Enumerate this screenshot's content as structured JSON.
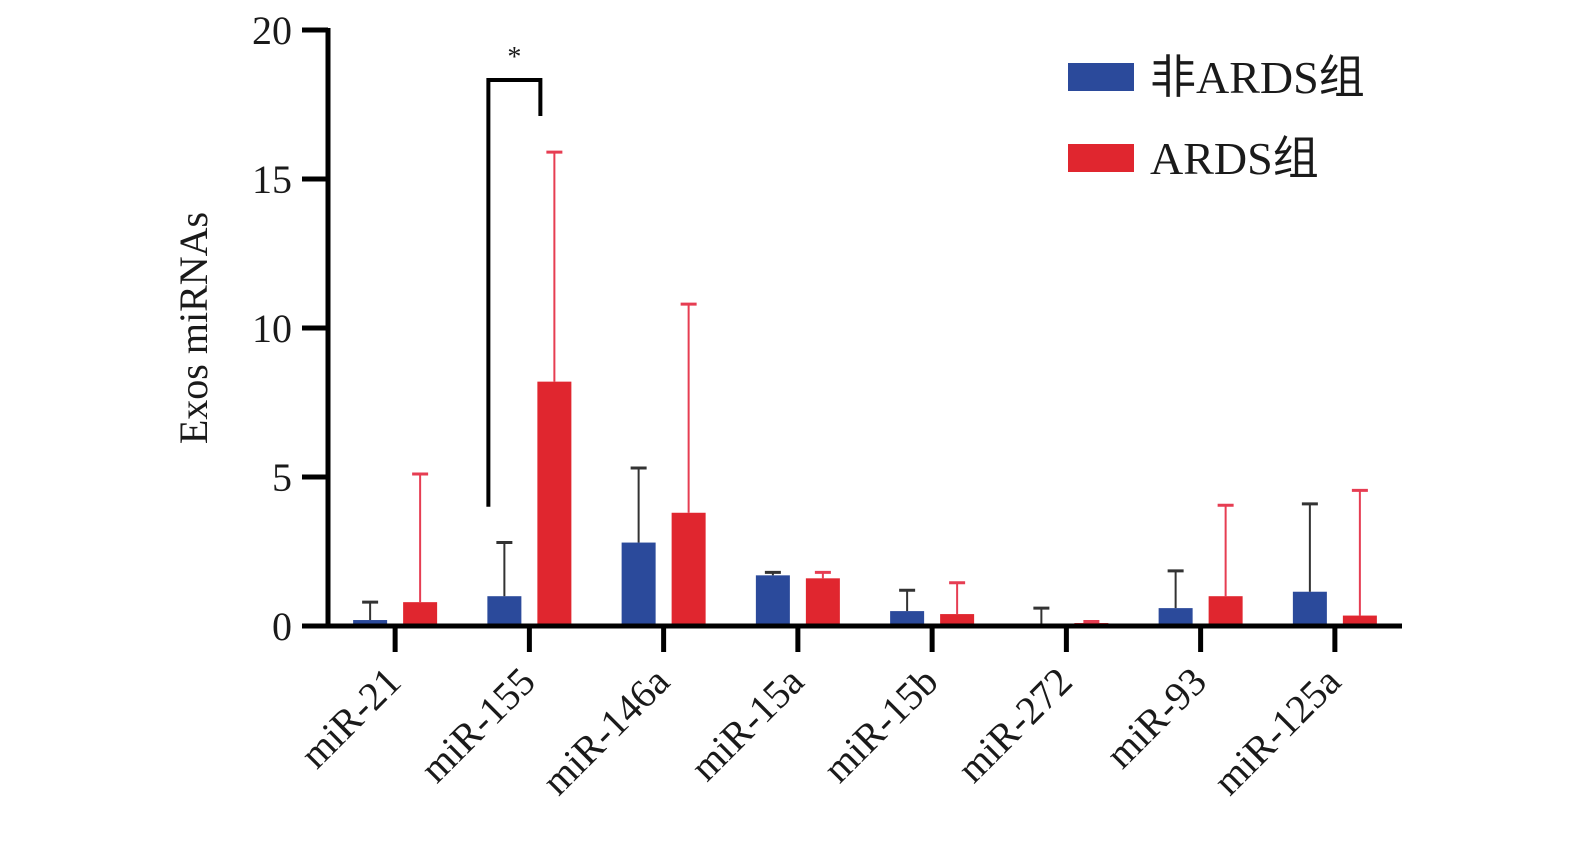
{
  "chart_data": {
    "type": "bar",
    "ylabel": "Exos miRNAs",
    "ylim": [
      0,
      20
    ],
    "yticks": [
      "0",
      "5",
      "10",
      "15",
      "20"
    ],
    "categories": [
      "miR-21",
      "miR-155",
      "miR-146a",
      "miR-15a",
      "miR-15b",
      "miR-272",
      "miR-93",
      "miR-125a"
    ],
    "series": [
      {
        "name": "非ARDS组",
        "color": "#2b4a9b",
        "values": [
          0.2,
          1.0,
          2.8,
          1.7,
          0.5,
          0.0,
          0.6,
          1.15
        ],
        "error_upper": [
          0.8,
          2.8,
          5.3,
          1.8,
          1.2,
          0.6,
          1.85,
          4.1
        ]
      },
      {
        "name": "ARDS组",
        "color": "#e0262f",
        "values": [
          0.8,
          8.2,
          3.8,
          1.6,
          0.4,
          0.1,
          1.0,
          0.35
        ],
        "error_upper": [
          5.1,
          15.9,
          10.8,
          1.8,
          1.45,
          0.15,
          4.05,
          4.55
        ]
      }
    ],
    "annotations": [
      {
        "category": "miR-155",
        "text": "*"
      }
    ],
    "legend": "top-right",
    "grid": false
  }
}
